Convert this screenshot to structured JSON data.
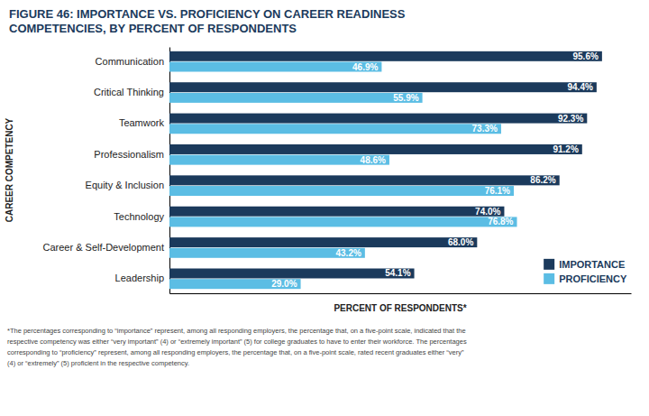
{
  "chart_data": {
    "type": "bar",
    "orientation": "horizontal",
    "title": "FIGURE 46: IMPORTANCE VS. PROFICIENCY ON CAREER READINESS",
    "subtitle": "COMPETENCIES, BY PERCENT OF RESPONDENTS",
    "x_label": "PERCENT OF RESPONDENTS*",
    "y_label": "CAREER COMPETENCY",
    "categories": [
      "Communication",
      "Critical Thinking",
      "Teamwork",
      "Professionalism",
      "Equity & Inclusion",
      "Technology",
      "Career & Self-Development",
      "Leadership"
    ],
    "series": [
      {
        "name": "IMPORTANCE",
        "color": "#1b3a5c",
        "values": [
          95.6,
          94.4,
          92.3,
          91.2,
          86.2,
          74.0,
          68.0,
          54.1
        ],
        "value_labels": [
          "95.6%",
          "94.4%",
          "92.3%",
          "91.2%",
          "86.2%",
          "74.0%",
          "68.0%",
          "54.1%"
        ]
      },
      {
        "name": "PROFICIENCY",
        "color": "#5bbde4",
        "values": [
          46.9,
          55.9,
          73.3,
          48.6,
          76.1,
          76.8,
          43.2,
          29.0
        ],
        "value_labels": [
          "46.9%",
          "55.9%",
          "73.3%",
          "48.6%",
          "76.1%",
          "76.8%",
          "43.2%",
          "29.0%"
        ]
      }
    ],
    "xlim": [
      0,
      102
    ],
    "data_labels": true,
    "tick_labels": "y",
    "legend": "lower right",
    "grid": false,
    "annotations": [
      "*The percentages corresponding to “importance” represent, among all responding employers, the percentage that, on a five-point scale, indicated that the",
      "respective competency was either “very important” (4) or “extremely important” (5) for college graduates to have to enter their workforce. The percentages",
      "corresponding to “proficiency” represent, among all responding employers, the percentage that, on a five-point scale, rated recent graduates either “very”",
      "(4) or “extremely” (5) proficient in the respective competency."
    ]
  }
}
